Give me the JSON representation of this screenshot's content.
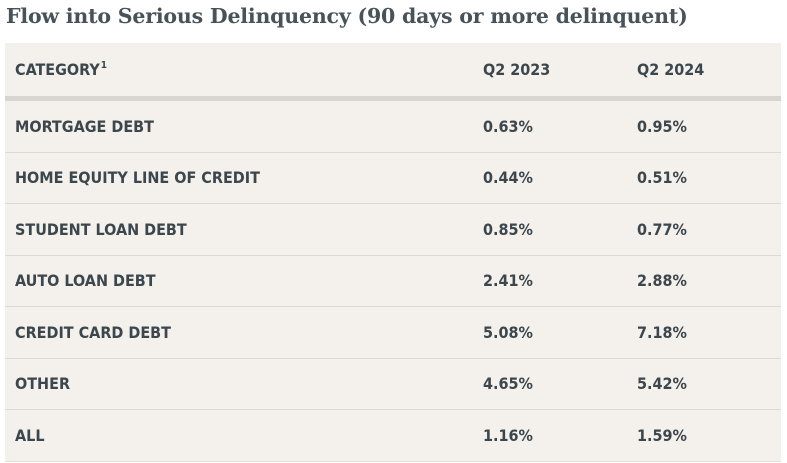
{
  "title": "Flow into Serious Delinquency (90 days or more delinquent)",
  "chart_data": {
    "type": "table",
    "title": "Flow into Serious Delinquency (90 days or more delinquent)",
    "columns": [
      "CATEGORY",
      "Q2 2023",
      "Q2 2024"
    ],
    "column_footnote": "1",
    "rows": [
      {
        "category": "MORTGAGE DEBT",
        "q2_2023": "0.63%",
        "q2_2024": "0.95%"
      },
      {
        "category": "HOME EQUITY LINE OF CREDIT",
        "q2_2023": "0.44%",
        "q2_2024": "0.51%"
      },
      {
        "category": "STUDENT LOAN DEBT",
        "q2_2023": "0.85%",
        "q2_2024": "0.77%"
      },
      {
        "category": "AUTO LOAN DEBT",
        "q2_2023": "2.41%",
        "q2_2024": "2.88%"
      },
      {
        "category": "CREDIT CARD DEBT",
        "q2_2023": "5.08%",
        "q2_2024": "7.18%"
      },
      {
        "category": "OTHER",
        "q2_2023": "4.65%",
        "q2_2024": "5.42%"
      },
      {
        "category": "ALL",
        "q2_2023": "1.16%",
        "q2_2024": "1.59%"
      }
    ]
  },
  "colors": {
    "title_text": "#475259",
    "table_background": "#f4f1ec",
    "table_text": "#3c464d",
    "header_rule": "#d8d4cf",
    "row_divider": "#dcd8d3"
  }
}
